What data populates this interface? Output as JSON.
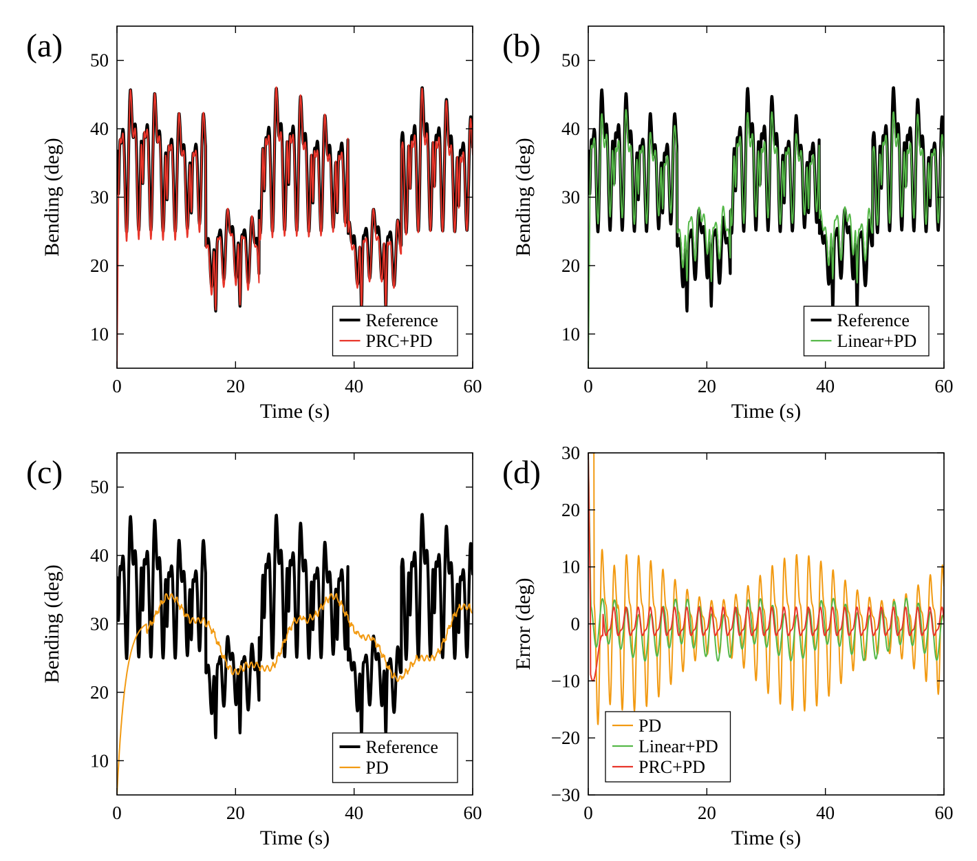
{
  "colors": {
    "reference": "#000000",
    "prc_pd": "#e8352a",
    "linear_pd": "#55b848",
    "pd": "#f29a12"
  },
  "chart_data": [
    {
      "id": "a",
      "type": "line",
      "panel_label": "(a)",
      "xlabel": "Time (s)",
      "ylabel": "Bending (deg)",
      "xlim": [
        0,
        60
      ],
      "ylim": [
        5,
        55
      ],
      "xticks": [
        0,
        20,
        40,
        60
      ],
      "yticks": [
        10,
        20,
        30,
        40,
        50
      ],
      "legend_position": "bottom-right",
      "series": [
        {
          "name": "Reference",
          "color": "#000000",
          "kind": "reference"
        },
        {
          "name": "PRC+PD",
          "color": "#e8352a",
          "kind": "prc"
        }
      ]
    },
    {
      "id": "b",
      "type": "line",
      "panel_label": "(b)",
      "xlabel": "Time (s)",
      "ylabel": "Bending (deg)",
      "xlim": [
        0,
        60
      ],
      "ylim": [
        5,
        55
      ],
      "xticks": [
        0,
        20,
        40,
        60
      ],
      "yticks": [
        10,
        20,
        30,
        40,
        50
      ],
      "legend_position": "bottom-right",
      "series": [
        {
          "name": "Reference",
          "color": "#000000",
          "kind": "reference"
        },
        {
          "name": "Linear+PD",
          "color": "#55b848",
          "kind": "linear"
        }
      ]
    },
    {
      "id": "c",
      "type": "line",
      "panel_label": "(c)",
      "xlabel": "Time (s)",
      "ylabel": "Bending (deg)",
      "xlim": [
        0,
        60
      ],
      "ylim": [
        5,
        55
      ],
      "xticks": [
        0,
        20,
        40,
        60
      ],
      "yticks": [
        10,
        20,
        30,
        40,
        50
      ],
      "legend_position": "bottom-right",
      "series": [
        {
          "name": "Reference",
          "color": "#000000",
          "kind": "reference"
        },
        {
          "name": "PD",
          "color": "#f29a12",
          "kind": "pd"
        }
      ]
    },
    {
      "id": "d",
      "type": "line",
      "panel_label": "(d)",
      "xlabel": "Time (s)",
      "ylabel": "Error (deg)",
      "xlim": [
        0,
        60
      ],
      "ylim": [
        -30,
        30
      ],
      "xticks": [
        0,
        20,
        40,
        60
      ],
      "yticks": [
        -30,
        -20,
        -10,
        0,
        10,
        20,
        30
      ],
      "legend_position": "bottom-left",
      "series": [
        {
          "name": "PD",
          "color": "#f29a12",
          "kind": "err_pd"
        },
        {
          "name": "Linear+PD",
          "color": "#55b848",
          "kind": "err_linear"
        },
        {
          "name": "PRC+PD",
          "color": "#e8352a",
          "kind": "err_prc"
        }
      ]
    }
  ]
}
